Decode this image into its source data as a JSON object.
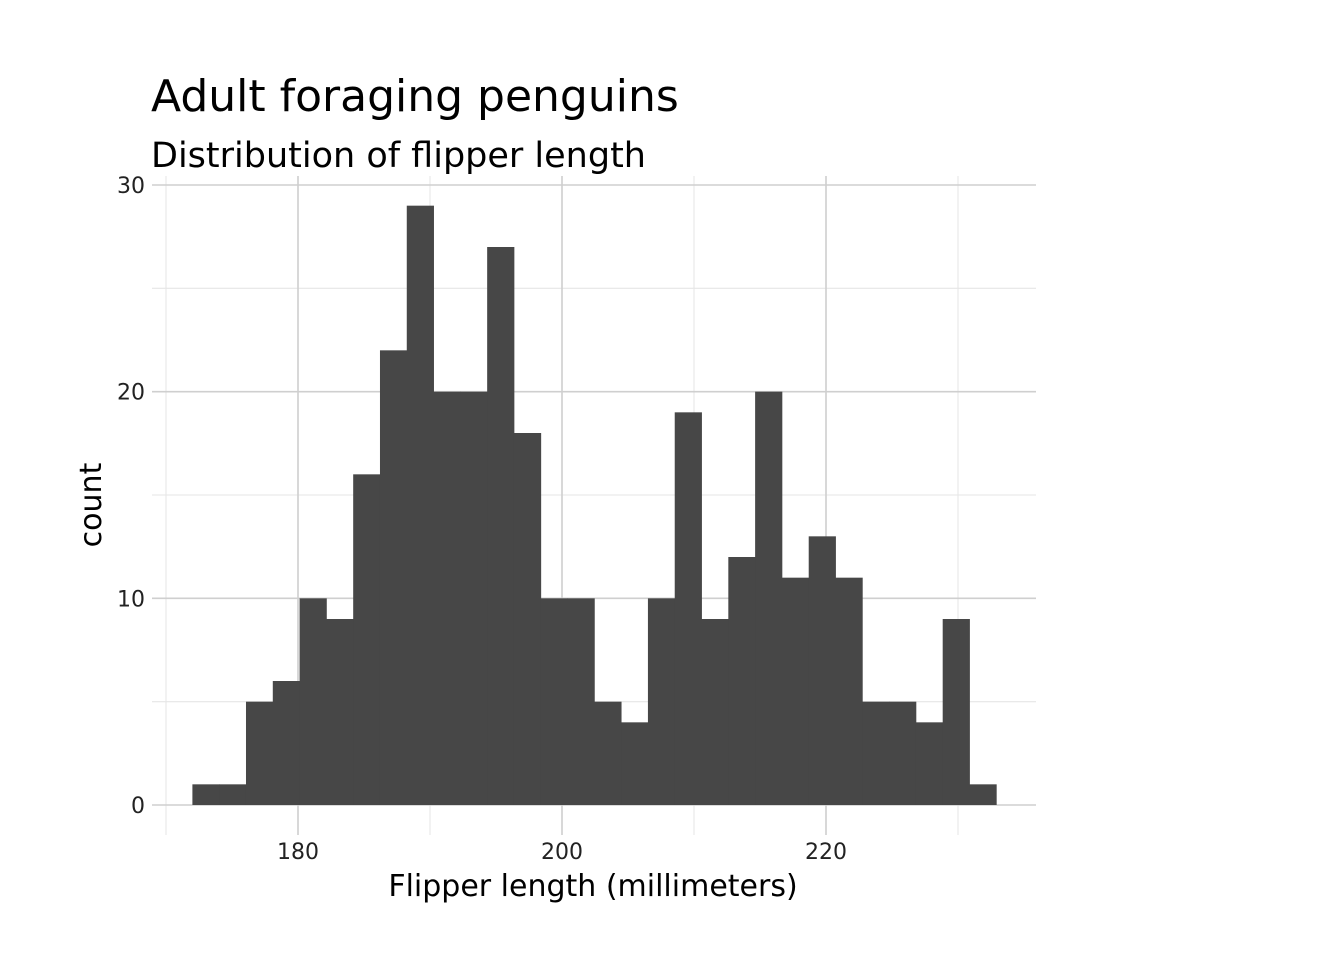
{
  "chart_data": {
    "type": "bar",
    "title": "Adult foraging penguins",
    "subtitle": "Distribution of flipper length",
    "xlabel": "Flipper length (millimeters)",
    "ylabel": "count",
    "bin_width": 2.03,
    "bins": [
      {
        "x0": 172.0,
        "x1": 174.03,
        "count": 1
      },
      {
        "x0": 174.03,
        "x1": 176.06,
        "count": 1
      },
      {
        "x0": 176.06,
        "x1": 178.09,
        "count": 5
      },
      {
        "x0": 178.09,
        "x1": 180.12,
        "count": 6
      },
      {
        "x0": 180.12,
        "x1": 182.15,
        "count": 10
      },
      {
        "x0": 182.15,
        "x1": 184.18,
        "count": 9
      },
      {
        "x0": 184.18,
        "x1": 186.21,
        "count": 16
      },
      {
        "x0": 186.21,
        "x1": 188.24,
        "count": 22
      },
      {
        "x0": 188.24,
        "x1": 190.27,
        "count": 29
      },
      {
        "x0": 190.27,
        "x1": 192.3,
        "count": 20
      },
      {
        "x0": 192.3,
        "x1": 194.33,
        "count": 20
      },
      {
        "x0": 194.33,
        "x1": 196.36,
        "count": 27
      },
      {
        "x0": 196.36,
        "x1": 198.39,
        "count": 18
      },
      {
        "x0": 198.39,
        "x1": 200.42,
        "count": 10
      },
      {
        "x0": 200.42,
        "x1": 202.45,
        "count": 10
      },
      {
        "x0": 202.45,
        "x1": 204.48,
        "count": 5
      },
      {
        "x0": 204.48,
        "x1": 206.51,
        "count": 4
      },
      {
        "x0": 206.51,
        "x1": 208.54,
        "count": 10
      },
      {
        "x0": 208.54,
        "x1": 210.57,
        "count": 19
      },
      {
        "x0": 210.57,
        "x1": 212.6,
        "count": 9
      },
      {
        "x0": 212.6,
        "x1": 214.63,
        "count": 12
      },
      {
        "x0": 214.63,
        "x1": 216.66,
        "count": 20
      },
      {
        "x0": 216.66,
        "x1": 218.69,
        "count": 11
      },
      {
        "x0": 218.69,
        "x1": 220.72,
        "count": 13
      },
      {
        "x0": 220.72,
        "x1": 222.75,
        "count": 11
      },
      {
        "x0": 222.75,
        "x1": 224.78,
        "count": 5
      },
      {
        "x0": 224.78,
        "x1": 226.81,
        "count": 5
      },
      {
        "x0": 226.81,
        "x1": 228.84,
        "count": 4
      },
      {
        "x0": 228.84,
        "x1": 230.87,
        "count": 9
      },
      {
        "x0": 230.87,
        "x1": 232.9,
        "count": 1
      }
    ],
    "xlim": [
      170,
      235.8
    ],
    "ylim": [
      0,
      30.4
    ],
    "x_major_ticks": [
      180,
      200,
      220
    ],
    "x_minor_ticks": [
      170,
      190,
      210,
      230
    ],
    "y_major_ticks": [
      0,
      10,
      20,
      30
    ],
    "y_minor_ticks": [
      5,
      15,
      25
    ],
    "grid": true,
    "legend": "none",
    "bar_color": "#474747",
    "grid_major_color": "#cfcfcf",
    "grid_minor_color": "#e6e6e6"
  }
}
